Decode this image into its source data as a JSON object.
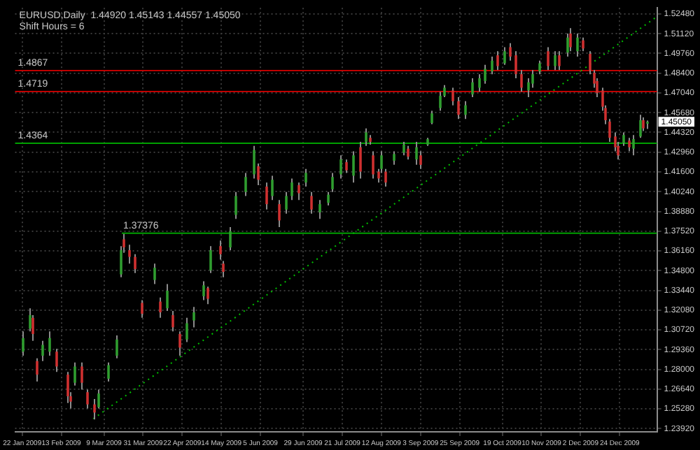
{
  "chart_data": {
    "type": "candlestick",
    "title": "EURUSD,Daily  1.44920 1.45143 1.44557 1.45050",
    "subtitle": "Shift Hours = 6",
    "x": [
      "2009-01-22",
      "2009-01-26",
      "2009-01-28",
      "2009-01-30",
      "2009-02-02",
      "2009-02-06",
      "2009-02-10",
      "2009-02-16",
      "2009-02-18",
      "2009-02-20",
      "2009-02-24",
      "2009-02-27",
      "2009-03-03",
      "2009-03-06",
      "2009-03-11",
      "2009-03-16",
      "2009-03-18",
      "2009-03-20",
      "2009-03-23",
      "2009-03-26",
      "2009-03-30",
      "2009-04-06",
      "2009-04-09",
      "2009-04-13",
      "2009-04-16",
      "2009-04-20",
      "2009-04-24",
      "2009-04-28",
      "2009-05-04",
      "2009-05-06",
      "2009-05-08",
      "2009-05-13",
      "2009-05-15",
      "2009-05-19",
      "2009-05-22",
      "2009-05-27",
      "2009-06-01",
      "2009-06-03",
      "2009-06-08",
      "2009-06-11",
      "2009-06-15",
      "2009-06-19",
      "2009-06-22",
      "2009-06-26",
      "2009-06-30",
      "2009-07-03",
      "2009-07-08",
      "2009-07-13",
      "2009-07-15",
      "2009-07-20",
      "2009-07-23",
      "2009-07-27",
      "2009-07-31",
      "2009-08-03",
      "2009-08-05",
      "2009-08-07",
      "2009-08-10",
      "2009-08-12",
      "2009-08-14",
      "2009-08-19",
      "2009-08-24",
      "2009-08-27",
      "2009-08-31",
      "2009-09-03",
      "2009-09-07",
      "2009-09-09",
      "2009-09-14",
      "2009-09-16",
      "2009-09-21",
      "2009-09-24",
      "2009-09-28",
      "2009-10-02",
      "2009-10-06",
      "2009-10-09",
      "2009-10-13",
      "2009-10-16",
      "2009-10-20",
      "2009-10-23",
      "2009-10-26",
      "2009-10-29",
      "2009-11-02",
      "2009-11-05",
      "2009-11-09",
      "2009-11-13",
      "2009-11-17",
      "2009-11-20",
      "2009-11-24",
      "2009-11-26",
      "2009-11-30",
      "2009-12-03",
      "2009-12-07",
      "2009-12-09",
      "2009-12-11",
      "2009-12-14",
      "2009-12-16",
      "2009-12-18",
      "2009-12-21",
      "2009-12-23",
      "2009-12-26",
      "2009-12-29",
      "2009-12-31",
      "2010-01-04",
      "2010-01-06",
      "2010-01-08"
    ],
    "ohlc": [
      [
        1.2922,
        1.3062,
        1.2894,
        1.3016
      ],
      [
        1.3081,
        1.3221,
        1.3062,
        1.3174
      ],
      [
        1.3155,
        1.3174,
        1.2997,
        1.3044
      ],
      [
        1.2857,
        1.2876,
        1.2717,
        1.2764
      ],
      [
        1.2894,
        1.2997,
        1.2857,
        1.2969
      ],
      [
        1.2922,
        1.3062,
        1.2894,
        1.3016
      ],
      [
        1.2922,
        1.2941,
        1.2783,
        1.282
      ],
      [
        1.2764,
        1.2783,
        1.2568,
        1.2615
      ],
      [
        1.2615,
        1.2643,
        1.2531,
        1.2578
      ],
      [
        1.2708,
        1.2848,
        1.2689,
        1.282
      ],
      [
        1.282,
        1.2848,
        1.2661,
        1.2708
      ],
      [
        1.2643,
        1.2661,
        1.2531,
        1.2559
      ],
      [
        1.2559,
        1.2596,
        1.2456,
        1.2503
      ],
      [
        1.254,
        1.2661,
        1.2531,
        1.2634
      ],
      [
        1.2736,
        1.2848,
        1.2717,
        1.2829
      ],
      [
        1.2894,
        1.3034,
        1.2876,
        1.3006
      ],
      [
        1.3454,
        1.3649,
        1.3435,
        1.3621
      ],
      [
        1.3696,
        1.3733,
        1.3603,
        1.364
      ],
      [
        1.3621,
        1.3659,
        1.3528,
        1.3575
      ],
      [
        1.3575,
        1.3593,
        1.3463,
        1.3491
      ],
      [
        1.3258,
        1.3277,
        1.3155,
        1.3183
      ],
      [
        1.3416,
        1.3528,
        1.3388,
        1.35
      ],
      [
        1.3267,
        1.3295,
        1.3155,
        1.3193
      ],
      [
        1.3221,
        1.3388,
        1.3202,
        1.3342
      ],
      [
        1.3174,
        1.3202,
        1.3062,
        1.309
      ],
      [
        1.3044,
        1.3062,
        1.2894,
        1.295
      ],
      [
        1.3006,
        1.3155,
        1.2988,
        1.3118
      ],
      [
        1.3137,
        1.323,
        1.309,
        1.3193
      ],
      [
        1.3304,
        1.3407,
        1.3277,
        1.3379
      ],
      [
        1.336,
        1.337,
        1.3249,
        1.3286
      ],
      [
        1.3482,
        1.3649,
        1.3463,
        1.3621
      ],
      [
        1.3649,
        1.3687,
        1.3556,
        1.3593
      ],
      [
        1.3528,
        1.3547,
        1.3435,
        1.3472
      ],
      [
        1.364,
        1.378,
        1.3621,
        1.3752
      ],
      [
        1.3864,
        1.4022,
        1.3836,
        1.3994
      ],
      [
        1.4022,
        1.4153,
        1.3994,
        1.4125
      ],
      [
        1.4143,
        1.4339,
        1.4115,
        1.4311
      ],
      [
        1.4199,
        1.4218,
        1.4069,
        1.4106
      ],
      [
        1.4059,
        1.4087,
        1.3901,
        1.3938
      ],
      [
        1.3994,
        1.4134,
        1.3966,
        1.4106
      ],
      [
        1.3938,
        1.3966,
        1.378,
        1.3826
      ],
      [
        1.3901,
        1.4022,
        1.3873,
        1.3994
      ],
      [
        1.3994,
        1.4115,
        1.3966,
        1.4087
      ],
      [
        1.4069,
        1.4087,
        1.3966,
        1.4013
      ],
      [
        1.4087,
        1.4181,
        1.4059,
        1.4153
      ],
      [
        1.3994,
        1.4022,
        1.3873,
        1.3901
      ],
      [
        1.3882,
        1.3966,
        1.3836,
        1.3938
      ],
      [
        1.3947,
        1.4022,
        1.3929,
        1.4003
      ],
      [
        1.4041,
        1.4153,
        1.4022,
        1.4125
      ],
      [
        1.4143,
        1.4274,
        1.4115,
        1.4246
      ],
      [
        1.4227,
        1.4246,
        1.4153,
        1.4171
      ],
      [
        1.4134,
        1.4302,
        1.4087,
        1.4274
      ],
      [
        1.433,
        1.4367,
        1.4115,
        1.4162
      ],
      [
        1.4367,
        1.446,
        1.4339,
        1.4432
      ],
      [
        1.4395,
        1.4414,
        1.4348,
        1.4367
      ],
      [
        1.4274,
        1.4302,
        1.4115,
        1.4143
      ],
      [
        1.4162,
        1.4181,
        1.4087,
        1.4115
      ],
      [
        1.4181,
        1.4302,
        1.4153,
        1.4274
      ],
      [
        1.4162,
        1.4181,
        1.4059,
        1.4087
      ],
      [
        1.4237,
        1.4302,
        1.4209,
        1.4283
      ],
      [
        1.4293,
        1.4367,
        1.4274,
        1.4348
      ],
      [
        1.432,
        1.4339,
        1.4246,
        1.4265
      ],
      [
        1.4246,
        1.4367,
        1.4209,
        1.433
      ],
      [
        1.4274,
        1.4302,
        1.4181,
        1.4209
      ],
      [
        1.4348,
        1.4395,
        1.4339,
        1.4386
      ],
      [
        1.4497,
        1.4581,
        1.4488,
        1.4563
      ],
      [
        1.46,
        1.4712,
        1.4581,
        1.4684
      ],
      [
        1.4684,
        1.4758,
        1.4675,
        1.474
      ],
      [
        1.4721,
        1.474,
        1.4619,
        1.4647
      ],
      [
        1.4647,
        1.4675,
        1.4525,
        1.4553
      ],
      [
        1.4553,
        1.4647,
        1.4525,
        1.4619
      ],
      [
        1.4693,
        1.4805,
        1.4675,
        1.4777
      ],
      [
        1.474,
        1.4833,
        1.4712,
        1.4805
      ],
      [
        1.4786,
        1.4898,
        1.4768,
        1.487
      ],
      [
        1.4852,
        1.4954,
        1.4833,
        1.4926
      ],
      [
        1.4963,
        1.4991,
        1.4861,
        1.4889
      ],
      [
        1.4908,
        1.5019,
        1.4898,
        1.4991
      ],
      [
        1.5019,
        1.5047,
        1.4926,
        1.4954
      ],
      [
        1.4963,
        1.4991,
        1.4805,
        1.4833
      ],
      [
        1.4833,
        1.4861,
        1.4712,
        1.474
      ],
      [
        1.4721,
        1.4805,
        1.4675,
        1.4777
      ],
      [
        1.4768,
        1.4861,
        1.474,
        1.4833
      ],
      [
        1.4852,
        1.4926,
        1.4833,
        1.4908
      ],
      [
        1.4991,
        1.5019,
        1.4861,
        1.4889
      ],
      [
        1.4889,
        1.4991,
        1.4861,
        1.4963
      ],
      [
        1.4963,
        1.4991,
        1.4861,
        1.4889
      ],
      [
        1.4982,
        1.5113,
        1.4954,
        1.5085
      ],
      [
        1.5113,
        1.515,
        1.4991,
        1.5019
      ],
      [
        1.4991,
        1.5113,
        1.4954,
        1.5085
      ],
      [
        1.5066,
        1.5085,
        1.4991,
        1.501
      ],
      [
        1.4973,
        1.4991,
        1.4833,
        1.4861
      ],
      [
        1.4842,
        1.4861,
        1.474,
        1.4768
      ],
      [
        1.4786,
        1.4805,
        1.4675,
        1.4703
      ],
      [
        1.4721,
        1.474,
        1.4581,
        1.4609
      ],
      [
        1.46,
        1.4619,
        1.4488,
        1.4516
      ],
      [
        1.4507,
        1.4525,
        1.4367,
        1.4395
      ],
      [
        1.4404,
        1.4432,
        1.4302,
        1.433
      ],
      [
        1.4339,
        1.4367,
        1.4246,
        1.4274
      ],
      [
        1.4358,
        1.4432,
        1.4339,
        1.4414
      ],
      [
        1.4376,
        1.4395,
        1.4302,
        1.433
      ],
      [
        1.432,
        1.4414,
        1.4274,
        1.4386
      ],
      [
        1.4404,
        1.4553,
        1.4395,
        1.4516
      ],
      [
        1.4516,
        1.4535,
        1.4442,
        1.446
      ],
      [
        1.4492,
        1.4514,
        1.4456,
        1.4505
      ]
    ],
    "colors": [
      "#2f9e2f",
      "#2f9e2f",
      "#d03030",
      "#d03030",
      "#2f9e2f",
      "#2f9e2f",
      "#d03030",
      "#d03030",
      "#d03030",
      "#2f9e2f",
      "#d03030",
      "#d03030",
      "#d03030",
      "#2f9e2f",
      "#2f9e2f",
      "#2f9e2f",
      "#2f9e2f",
      "#d03030",
      "#d03030",
      "#d03030",
      "#d03030",
      "#2f9e2f",
      "#d03030",
      "#2f9e2f",
      "#d03030",
      "#d03030",
      "#2f9e2f",
      "#2f9e2f",
      "#2f9e2f",
      "#d03030",
      "#2f9e2f",
      "#d03030",
      "#d03030",
      "#2f9e2f",
      "#2f9e2f",
      "#2f9e2f",
      "#2f9e2f",
      "#d03030",
      "#d03030",
      "#2f9e2f",
      "#d03030",
      "#2f9e2f",
      "#2f9e2f",
      "#d03030",
      "#2f9e2f",
      "#d03030",
      "#2f9e2f",
      "#2f9e2f",
      "#2f9e2f",
      "#2f9e2f",
      "#d03030",
      "#2f9e2f",
      "#d03030",
      "#2f9e2f",
      "#d03030",
      "#d03030",
      "#d03030",
      "#2f9e2f",
      "#d03030",
      "#2f9e2f",
      "#2f9e2f",
      "#d03030",
      "#2f9e2f",
      "#d03030",
      "#2f9e2f",
      "#2f9e2f",
      "#2f9e2f",
      "#2f9e2f",
      "#d03030",
      "#d03030",
      "#2f9e2f",
      "#2f9e2f",
      "#2f9e2f",
      "#2f9e2f",
      "#2f9e2f",
      "#d03030",
      "#2f9e2f",
      "#d03030",
      "#d03030",
      "#d03030",
      "#2f9e2f",
      "#2f9e2f",
      "#2f9e2f",
      "#d03030",
      "#2f9e2f",
      "#d03030",
      "#2f9e2f",
      "#d03030",
      "#2f9e2f",
      "#d03030",
      "#d03030",
      "#d03030",
      "#d03030",
      "#d03030",
      "#d03030",
      "#d03030",
      "#d03030",
      "#d03030",
      "#2f9e2f",
      "#d03030",
      "#2f9e2f",
      "#2f9e2f",
      "#d03030",
      "#2f9e2f"
    ],
    "series": [
      {
        "type": "line",
        "x": [
          "2009-03-03",
          "2010-01-14"
        ],
        "values": [
          1.246,
          1.523
        ],
        "color": "#00c000",
        "line_style": "dotted"
      },
      {
        "type": "line",
        "x": [
          "2009-03-19",
          "2010-01-14"
        ],
        "values": [
          1.37376,
          1.37376
        ],
        "color": "#00a000",
        "line_style": "solid"
      }
    ],
    "ref_lines": [
      {
        "axis": "y",
        "value": 1.4867,
        "label": "1.4867",
        "color": "#c00000"
      },
      {
        "axis": "y",
        "value": 1.4719,
        "label": "1.4719",
        "color": "#c00000"
      },
      {
        "axis": "y",
        "value": 1.4364,
        "label": "1.4364",
        "color": "#00a000"
      }
    ],
    "annotations": [
      {
        "text": "1.37376",
        "x": "2009-03-19",
        "y": 1.37376
      },
      "1.45050"
    ],
    "xlim": [
      "2009-01-18",
      "2010-01-14"
    ],
    "xticks": [
      {
        "value": "2009-01-22",
        "label": "22 Jan 2009"
      },
      {
        "value": "2009-02-13",
        "label": "13 Feb 2009"
      },
      {
        "value": "2009-03-09",
        "label": "9 Mar 2009"
      },
      {
        "value": "2009-03-31",
        "label": "31 Mar 2009"
      },
      {
        "value": "2009-04-22",
        "label": "22 Apr 2009"
      },
      {
        "value": "2009-05-14",
        "label": "14 May 2009"
      },
      {
        "value": "2009-06-05",
        "label": "5 Jun 2009"
      },
      {
        "value": "2009-06-29",
        "label": "29 Jun 2009"
      },
      {
        "value": "2009-07-21",
        "label": "21 Jul 2009"
      },
      {
        "value": "2009-08-12",
        "label": "12 Aug 2009"
      },
      {
        "value": "2009-09-03",
        "label": "3 Sep 2009"
      },
      {
        "value": "2009-09-25",
        "label": "25 Sep 2009"
      },
      {
        "value": "2009-10-19",
        "label": "19 Oct 2009"
      },
      {
        "value": "2009-11-10",
        "label": "10 Nov 2009"
      },
      {
        "value": "2009-12-02",
        "label": "2 Dec 2009"
      },
      {
        "value": "2009-12-24",
        "label": "24 Dec 2009"
      }
    ],
    "ylim": [
      1.237,
      1.529
    ],
    "yticks": [
      {
        "value": 1.2392,
        "label": "1.23920"
      },
      {
        "value": 1.2528,
        "label": "1.25280"
      },
      {
        "value": 1.2664,
        "label": "1.26640"
      },
      {
        "value": 1.28,
        "label": "1.28000"
      },
      {
        "value": 1.2936,
        "label": "1.29360"
      },
      {
        "value": 1.3072,
        "label": "1.30720"
      },
      {
        "value": 1.3208,
        "label": "1.32080"
      },
      {
        "value": 1.3344,
        "label": "1.33440"
      },
      {
        "value": 1.348,
        "label": "1.34800"
      },
      {
        "value": 1.3616,
        "label": "1.36160"
      },
      {
        "value": 1.3752,
        "label": "1.37520"
      },
      {
        "value": 1.3888,
        "label": "1.38880"
      },
      {
        "value": 1.4024,
        "label": "1.40240"
      },
      {
        "value": 1.416,
        "label": "1.41600"
      },
      {
        "value": 1.4296,
        "label": "1.42960"
      },
      {
        "value": 1.4432,
        "label": "1.44320"
      },
      {
        "value": 1.4568,
        "label": "1.45680"
      },
      {
        "value": 1.4704,
        "label": "1.47040"
      },
      {
        "value": 1.484,
        "label": "1.48400"
      },
      {
        "value": 1.4976,
        "label": "1.49760"
      },
      {
        "value": 1.5112,
        "label": "1.51120"
      },
      {
        "value": 1.5248,
        "label": "1.52480"
      }
    ],
    "grid": true,
    "legend": false
  }
}
